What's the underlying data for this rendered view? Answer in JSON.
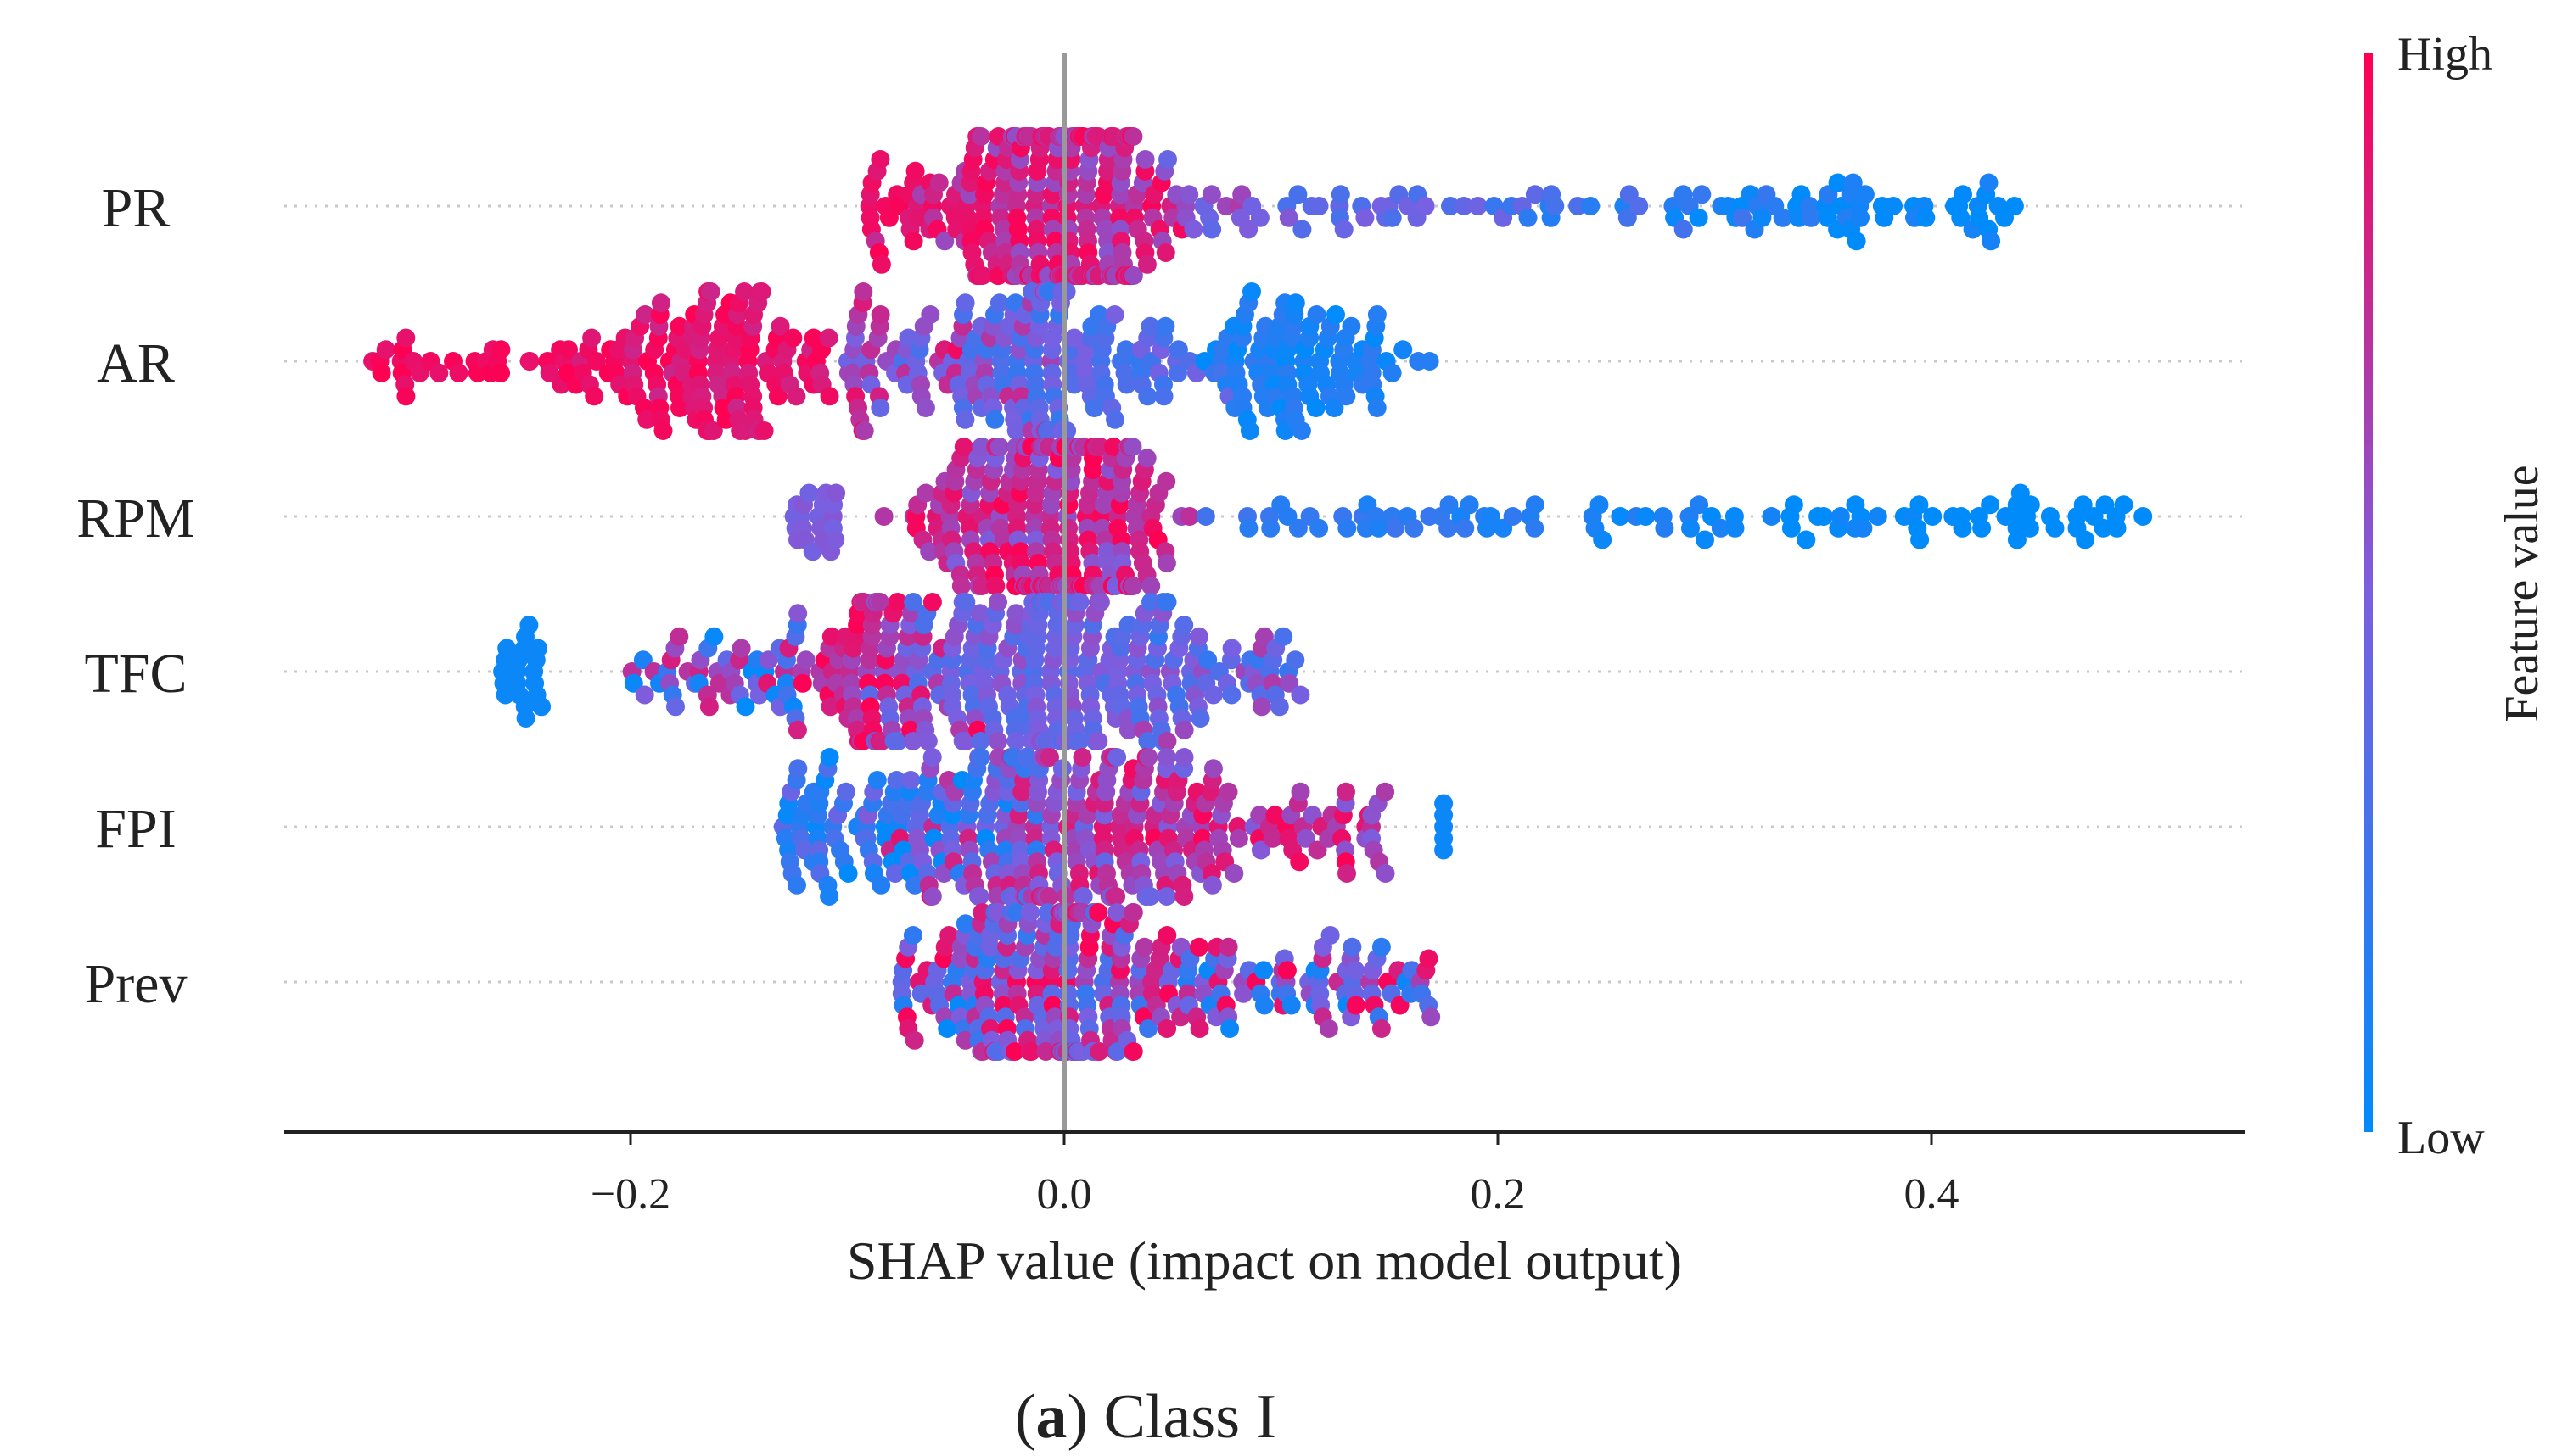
{
  "chart_data": {
    "type": "scatter",
    "subtype": "shap_beeswarm",
    "xlabel": "SHAP value (impact on model output)",
    "xlim": [
      -0.36,
      0.545
    ],
    "xticks": [
      -0.2,
      0.0,
      0.2,
      0.4
    ],
    "xtick_labels": [
      "−0.2",
      "0.0",
      "0.2",
      "0.4"
    ],
    "features": [
      "PR",
      "AR",
      "RPM",
      "TFC",
      "FPI",
      "Prev"
    ],
    "colorbar": {
      "label": "Feature value",
      "high_label": "High",
      "low_label": "Low",
      "high_color": "#ff0052",
      "low_color": "#008bfb"
    },
    "series": [
      {
        "name": "PR",
        "min": -0.09,
        "max": 0.44,
        "peak": 0.0,
        "spread": 0.03,
        "tail_max": 0.44,
        "high_side": "negative",
        "density": "left-heavy with long positive blue tail"
      },
      {
        "name": "AR",
        "min": -0.32,
        "max": 0.17,
        "peak": 0.0,
        "spread": 0.08,
        "tail_min": -0.32,
        "high_side": "negative",
        "density": "clusters near -0.16 (red) and 0.11 (blue)"
      },
      {
        "name": "RPM",
        "min": -0.125,
        "max": 0.5,
        "peak": 0.0,
        "spread": 0.03,
        "tail_max": 0.5,
        "high_side": "negative",
        "density": "long positive blue tail"
      },
      {
        "name": "TFC",
        "min": -0.26,
        "max": 0.11,
        "peak": 0.0,
        "spread": 0.06,
        "high_side": "mixed",
        "density": "clusters near -0.09 and 0.0"
      },
      {
        "name": "FPI",
        "min": -0.13,
        "max": 0.175,
        "peak": 0.0,
        "spread": 0.06,
        "high_side": "positive",
        "density": "symmetric around 0"
      },
      {
        "name": "Prev",
        "min": -0.075,
        "max": 0.17,
        "peak": 0.0,
        "spread": 0.05,
        "high_side": "mixed",
        "density": "concentrated near 0"
      }
    ]
  },
  "caption": {
    "prefix": "(",
    "letter": "a",
    "suffix": ") Class I"
  }
}
